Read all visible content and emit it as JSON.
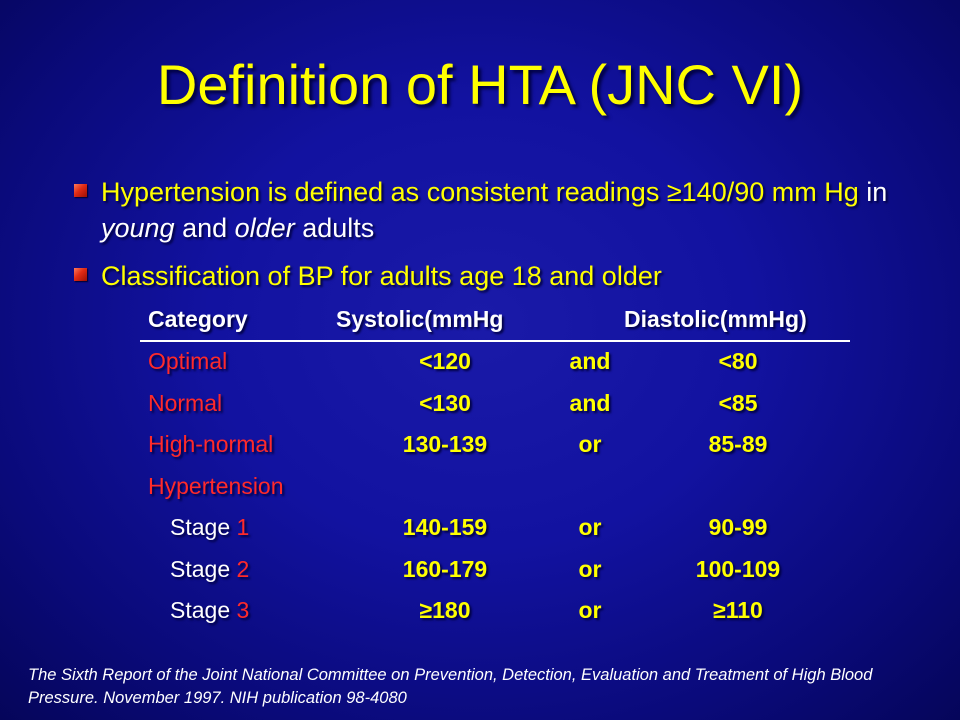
{
  "slide": {
    "title": "Definition of HTA (JNC VI)",
    "bullets": [
      {
        "part1": "Hypertension is defined as consistent readings ",
        "ge_symbol": "≥",
        "part2": "140/90 mm Hg",
        "part3": " in ",
        "emph1": "young",
        "part4": " and ",
        "emph2": "older",
        "part5": " adults"
      },
      {
        "text": "Classification of BP for adults age 18 and older"
      }
    ],
    "table": {
      "headers": {
        "category": "Category",
        "systolic": "Systolic(mmHg",
        "diastolic": "Diastolic(mmHg)"
      },
      "rows": [
        {
          "category": "Optimal",
          "systolic": "<120",
          "connector": "and",
          "diastolic": "<80"
        },
        {
          "category": "Normal",
          "systolic": "<130",
          "connector": "and",
          "diastolic": "<85"
        },
        {
          "category": "High-normal",
          "systolic": "130-139",
          "connector": "or",
          "diastolic": "85-89"
        },
        {
          "category": "Hypertension",
          "systolic": "",
          "connector": "",
          "diastolic": ""
        },
        {
          "stage_label": "Stage ",
          "stage_num": "1",
          "systolic": "140-159",
          "connector": "or",
          "diastolic": "90-99"
        },
        {
          "stage_label": "Stage ",
          "stage_num": "2",
          "systolic": "160-179",
          "connector": "or",
          "diastolic": "100-109"
        },
        {
          "stage_label": "Stage ",
          "stage_num": "3",
          "systolic": "≥180",
          "connector": "or",
          "diastolic": "≥110"
        }
      ]
    },
    "citation": "The Sixth Report of the Joint National Committee on Prevention, Detection, Evaluation and Treatment of High Blood Pressure. November 1997. NIH publication 98-4080",
    "colors": {
      "title": "#ffff00",
      "background": "#1212a0",
      "category_text": "#ff2a2a",
      "bullet_marker": "#e02a14"
    }
  }
}
